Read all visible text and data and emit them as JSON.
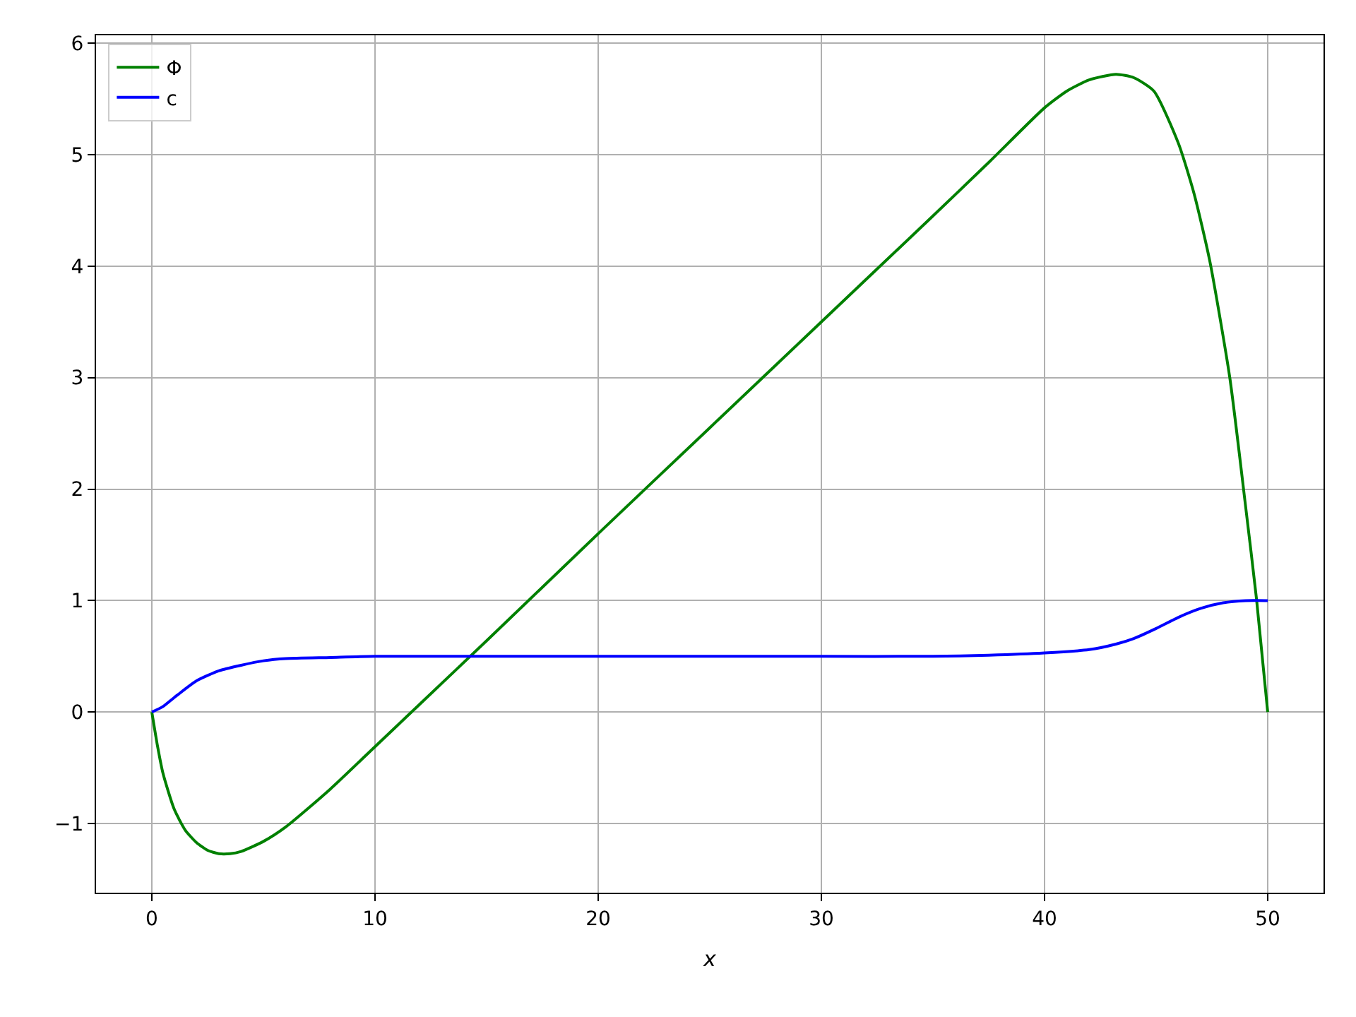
{
  "chart_data": {
    "type": "line",
    "xlabel": "x",
    "xlim": [
      -2.5,
      52.5
    ],
    "ylim": [
      -1.62,
      6.07
    ],
    "xticks": [
      0,
      10,
      20,
      30,
      40,
      50
    ],
    "yticks": [
      {
        "value": -1,
        "label": "−1"
      },
      0,
      1,
      2,
      3,
      4,
      5,
      6
    ],
    "grid": true,
    "legend": "top left",
    "line_style": "solid",
    "marker": "none",
    "series": [
      {
        "name": "Φ",
        "color": "#008000",
        "x": [
          0,
          0.25,
          0.5,
          1,
          1.5,
          2,
          2.5,
          3,
          3.5,
          4,
          5,
          6,
          8,
          10,
          12,
          15,
          20,
          25,
          30,
          35,
          37.5,
          40,
          41,
          42,
          43.2,
          44,
          44.9,
          46,
          46.7,
          47.4,
          48.3,
          49,
          49.5,
          50
        ],
        "values": [
          0,
          -0.3,
          -0.55,
          -0.87,
          -1.06,
          -1.17,
          -1.24,
          -1.27,
          -1.27,
          -1.25,
          -1.16,
          -1.03,
          -0.69,
          -0.31,
          0.07,
          0.64,
          1.6,
          2.55,
          3.5,
          4.45,
          4.93,
          5.42,
          5.57,
          5.67,
          5.72,
          5.69,
          5.57,
          5.1,
          4.65,
          4.05,
          3.0,
          1.86,
          1.01,
          0
        ]
      },
      {
        "name": "c",
        "color": "#0000ff",
        "x": [
          0,
          0.5,
          1,
          2,
          3,
          4,
          5,
          6,
          8,
          10,
          20,
          30,
          35,
          37.5,
          40,
          42,
          43.2,
          44,
          45,
          46,
          47,
          48,
          49,
          50
        ],
        "values": [
          0,
          0.05,
          0.13,
          0.28,
          0.37,
          0.42,
          0.46,
          0.48,
          0.49,
          0.5,
          0.5,
          0.5,
          0.5,
          0.51,
          0.53,
          0.56,
          0.61,
          0.66,
          0.75,
          0.85,
          0.93,
          0.98,
          1.0,
          1.0
        ]
      }
    ]
  }
}
